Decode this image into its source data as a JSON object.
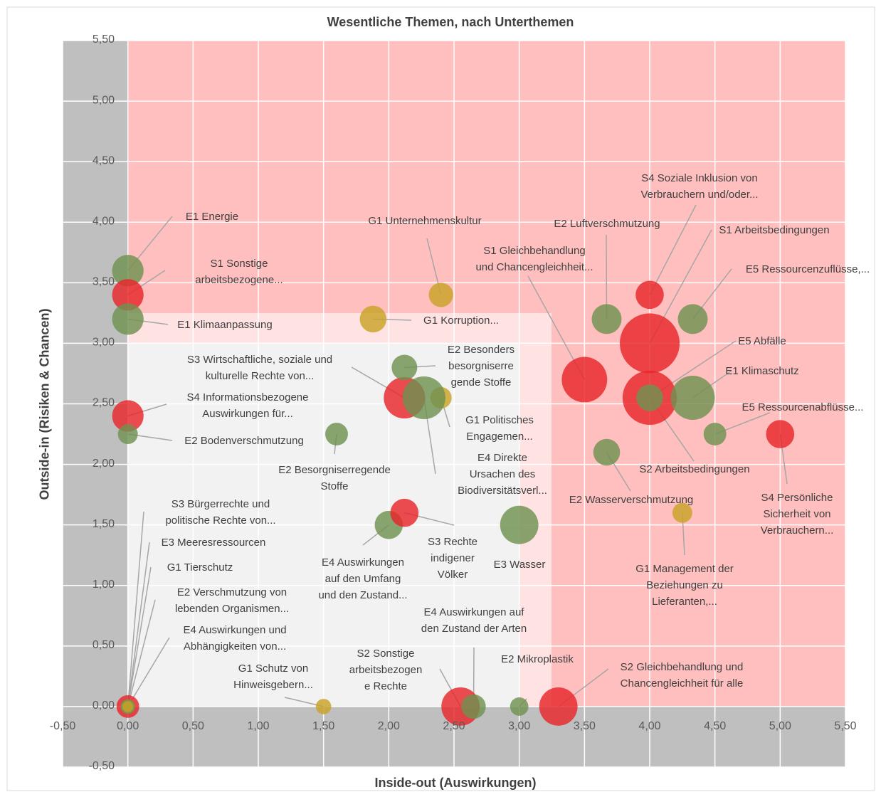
{
  "chart_data": {
    "type": "bubble",
    "title": "Wesentliche Themen, nach Unterthemen",
    "x_label": "Inside-out (Auswirkungen)",
    "y_label": "Outside-in (Risiken & Chancen)",
    "xlim": [
      -0.5,
      5.5
    ],
    "ylim": [
      -0.5,
      5.5
    ],
    "xticks": [
      {
        "value": -0.5,
        "label": "-0,50"
      },
      {
        "value": 0,
        "label": "0,00"
      },
      {
        "value": 0.5,
        "label": "0,50"
      },
      {
        "value": 1,
        "label": "1,00"
      },
      {
        "value": 1.5,
        "label": "1,50"
      },
      {
        "value": 2,
        "label": "2,00"
      },
      {
        "value": 2.5,
        "label": "2,50"
      },
      {
        "value": 3,
        "label": "3,00"
      },
      {
        "value": 3.5,
        "label": "3,50"
      },
      {
        "value": 4,
        "label": "4,00"
      },
      {
        "value": 4.5,
        "label": "4,50"
      },
      {
        "value": 5,
        "label": "5,00"
      },
      {
        "value": 5.5,
        "label": "5,50"
      }
    ],
    "yticks": [
      {
        "value": -0.5,
        "label": "-0,50"
      },
      {
        "value": 0,
        "label": "0,00"
      },
      {
        "value": 0.5,
        "label": "0,50"
      },
      {
        "value": 1,
        "label": "1,00"
      },
      {
        "value": 1.5,
        "label": "1,50"
      },
      {
        "value": 2,
        "label": "2,00"
      },
      {
        "value": 2.5,
        "label": "2,50"
      },
      {
        "value": 3,
        "label": "3,00"
      },
      {
        "value": 3.5,
        "label": "3,50"
      },
      {
        "value": 4,
        "label": "4,00"
      },
      {
        "value": 4.5,
        "label": "4,50"
      },
      {
        "value": 5,
        "label": "5,00"
      },
      {
        "value": 5.5,
        "label": "5,50"
      }
    ],
    "grid": true,
    "points": [
      {
        "label": "E1 Energie",
        "x": 0,
        "y": 3.6,
        "size": 2.5,
        "color": "#6f9150"
      },
      {
        "label": "S1 Sonstige\narbeitsbezogene...",
        "x": 0,
        "y": 3.4,
        "size": 2.5,
        "color": "#e8262a"
      },
      {
        "label": "E1 Klimaanpassung",
        "x": 0,
        "y": 3.2,
        "size": 2.5,
        "color": "#6f9150"
      },
      {
        "label": "S4 Informationsbezogene\nAuswirkungen für...",
        "x": 0,
        "y": 2.4,
        "size": 2.5,
        "color": "#e8262a"
      },
      {
        "label": "E2 Bodenverschmutzung",
        "x": 0,
        "y": 2.25,
        "size": 1,
        "color": "#6f9150"
      },
      {
        "label": "S3 Bürgerrechte und\npolitische Rechte von...",
        "x": 0,
        "y": 0,
        "size": 1.3,
        "color": "#e8262a"
      },
      {
        "label": "E3 Meeresressourcen",
        "x": 0,
        "y": 0,
        "size": 0.5,
        "color": "#6f9150"
      },
      {
        "label": "G1 Tierschutz",
        "x": 0,
        "y": 0,
        "size": 0.5,
        "color": "#c9a227"
      },
      {
        "label": "E2 Verschmutzung von\nlebenden Organismen...",
        "x": 0,
        "y": 0,
        "size": 0.5,
        "color": "#6f9150"
      },
      {
        "label": "E4 Auswirkungen und\nAbhängigkeiten von...",
        "x": 0,
        "y": 0,
        "size": 0.3,
        "color": "#c9a227"
      },
      {
        "label": "G1 Unternehmenskultur",
        "x": 2.4,
        "y": 3.4,
        "size": 1.5,
        "color": "#c9a227"
      },
      {
        "label": "G1 Korruption...",
        "x": 1.88,
        "y": 3.2,
        "size": 1.8,
        "color": "#c9a227"
      },
      {
        "label": "S3 Wirtschaftliche, soziale und\nkulturelle Rechte von...",
        "x": 2.12,
        "y": 2.55,
        "size": 4.3,
        "color": "#e8262a"
      },
      {
        "label": "E2 Besonders\nbesorgniserre\ngende Stoffe",
        "x": 2.12,
        "y": 2.8,
        "size": 1.65,
        "color": "#6f9150"
      },
      {
        "label": "G1 Politisches\nEngagemen...",
        "x": 2.4,
        "y": 2.55,
        "size": 1.15,
        "color": "#c9a227"
      },
      {
        "label": "E4 Direkte\nUrsachen des\nBiodiversitätsverl...",
        "x": 2.27,
        "y": 2.55,
        "size": 4.6,
        "color": "#6f9150"
      },
      {
        "label": "E2 Besorgniserregende\nStoffe",
        "x": 1.6,
        "y": 2.25,
        "size": 1.3,
        "color": "#6f9150"
      },
      {
        "label": "E4 Auswirkungen\nauf den Umfang\nund den Zustand...",
        "x": 2,
        "y": 1.5,
        "size": 2,
        "color": "#6f9150"
      },
      {
        "label": "S3 Rechte\nindigener\nVölker",
        "x": 2.12,
        "y": 1.6,
        "size": 2,
        "color": "#e8262a"
      },
      {
        "label": "E3 Wasser",
        "x": 3,
        "y": 1.5,
        "size": 3.7,
        "color": "#6f9150"
      },
      {
        "label": "G1 Schutz von\nHinweisgebern...",
        "x": 1.5,
        "y": 0,
        "size": 0.6,
        "color": "#c9a227"
      },
      {
        "label": "S2 Sonstige\narbeitsbezogen\ne Rechte",
        "x": 2.55,
        "y": 0,
        "size": 3.7,
        "color": "#e8262a"
      },
      {
        "label": "E4 Auswirkungen auf\nden Zustand der Arten",
        "x": 2.65,
        "y": 0,
        "size": 1.5,
        "color": "#6f9150"
      },
      {
        "label": "E2 Mikroplastik",
        "x": 3,
        "y": 0,
        "size": 0.85,
        "color": "#6f9150"
      },
      {
        "label": "S2 Gleichbehandlung und\nChancengleichheit für alle",
        "x": 3.3,
        "y": 0,
        "size": 3.7,
        "color": "#e8262a"
      },
      {
        "label": "S1 Gleichbehandlung\nund Chancengleichheit...",
        "x": 3.5,
        "y": 2.7,
        "size": 5.2,
        "color": "#e8262a"
      },
      {
        "label": "E2 Luftverschmutzung",
        "x": 3.67,
        "y": 3.2,
        "size": 2.25,
        "color": "#6f9150"
      },
      {
        "label": "S4 Soziale Inklusion von\nVerbrauchern und/oder...",
        "x": 4,
        "y": 3.4,
        "size": 2,
        "color": "#e8262a"
      },
      {
        "label": "S1 Arbeitsbedingungen",
        "x": 4,
        "y": 3,
        "size": 9,
        "color": "#e8262a"
      },
      {
        "label": "E5 Ressourcenzuflüsse,...",
        "x": 4.33,
        "y": 3.2,
        "size": 2.25,
        "color": "#6f9150"
      },
      {
        "label": "S2 Arbeitsbedingungen",
        "x": 4,
        "y": 2.55,
        "size": 7.4,
        "color": "#e8262a"
      },
      {
        "label": "E5 Abfälle",
        "x": 4,
        "y": 2.55,
        "size": 1.8,
        "color": "#6f9150"
      },
      {
        "label": "E1 Klimaschutz",
        "x": 4.33,
        "y": 2.55,
        "size": 4.9,
        "color": "#6f9150"
      },
      {
        "label": "E5 Ressourcenabflüsse...",
        "x": 4.5,
        "y": 2.25,
        "size": 1.3,
        "color": "#6f9150"
      },
      {
        "label": "S4 Persönliche\nSicherheit von\nVerbrauchern...",
        "x": 5,
        "y": 2.25,
        "size": 2,
        "color": "#e8262a"
      },
      {
        "label": "E2 Wasserverschmutzung",
        "x": 3.67,
        "y": 2.1,
        "size": 1.8,
        "color": "#6f9150"
      },
      {
        "label": "G1 Management der\nBeziehungen zu\nLieferanten,...",
        "x": 4.25,
        "y": 1.6,
        "size": 1,
        "color": "#c9a227"
      }
    ]
  }
}
